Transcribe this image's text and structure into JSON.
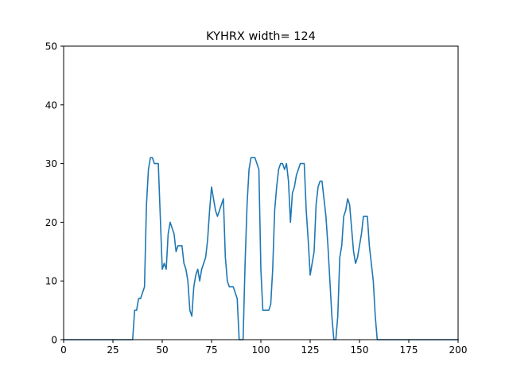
{
  "chart_data": {
    "type": "line",
    "title": "KYHRX width= 124",
    "xlabel": "",
    "ylabel": "",
    "xlim": [
      0,
      200
    ],
    "ylim": [
      0,
      50
    ],
    "xticks": [
      0,
      25,
      50,
      75,
      100,
      125,
      150,
      175,
      200
    ],
    "xtick_labels": [
      "0",
      "25",
      "50",
      "75",
      "100",
      "125",
      "150",
      "175",
      "200"
    ],
    "yticks": [
      0,
      10,
      20,
      30,
      40,
      50
    ],
    "ytick_labels": [
      "0",
      "10",
      "20",
      "30",
      "40",
      "50"
    ],
    "grid": false,
    "legend": "none",
    "line_color": "#1f77b4",
    "series": [
      {
        "x": [
          0,
          35,
          36,
          37,
          38,
          39,
          40,
          41,
          42,
          43,
          44,
          45,
          46,
          47,
          48,
          49,
          50,
          51,
          52,
          53,
          54,
          55,
          56,
          57,
          58,
          59,
          60,
          61,
          62,
          63,
          64,
          65,
          66,
          67,
          68,
          69,
          70,
          71,
          72,
          73,
          74,
          75,
          76,
          77,
          78,
          79,
          80,
          81,
          82,
          83,
          84,
          85,
          86,
          87,
          88,
          89,
          90,
          91,
          92,
          93,
          94,
          95,
          96,
          97,
          98,
          99,
          100,
          101,
          102,
          103,
          104,
          105,
          106,
          107,
          108,
          109,
          110,
          111,
          112,
          113,
          114,
          115,
          116,
          117,
          118,
          119,
          120,
          121,
          122,
          123,
          124,
          125,
          126,
          127,
          128,
          129,
          130,
          131,
          132,
          133,
          134,
          135,
          136,
          137,
          138,
          139,
          140,
          141,
          142,
          143,
          144,
          145,
          146,
          147,
          148,
          149,
          150,
          151,
          152,
          153,
          154,
          155,
          156,
          157,
          158,
          159,
          160,
          200
        ],
        "y": [
          0,
          0,
          5,
          5,
          7,
          7,
          8,
          9,
          23,
          29,
          31,
          31,
          30,
          30,
          30,
          21,
          12,
          13,
          12,
          18,
          20,
          19,
          18,
          15,
          16,
          16,
          16,
          13,
          12,
          10,
          5,
          4,
          9,
          11,
          12,
          10,
          12,
          13,
          14,
          17,
          22,
          26,
          24,
          22,
          21,
          22,
          23,
          24,
          14,
          10,
          9,
          9,
          9,
          8,
          7,
          0,
          0,
          0,
          13,
          23,
          29,
          31,
          31,
          31,
          30,
          29,
          12,
          5,
          5,
          5,
          5,
          6,
          12,
          22,
          26,
          29,
          30,
          30,
          29,
          30,
          27,
          20,
          25,
          26,
          28,
          29,
          30,
          30,
          30,
          22,
          17,
          11,
          13,
          15,
          23,
          26,
          27,
          27,
          24,
          21,
          16,
          10,
          4,
          0,
          0,
          4,
          14,
          16,
          21,
          22,
          24,
          23,
          19,
          15,
          13,
          14,
          16,
          18,
          21,
          21,
          21,
          16,
          13,
          10,
          4,
          0,
          0,
          0
        ]
      }
    ]
  }
}
